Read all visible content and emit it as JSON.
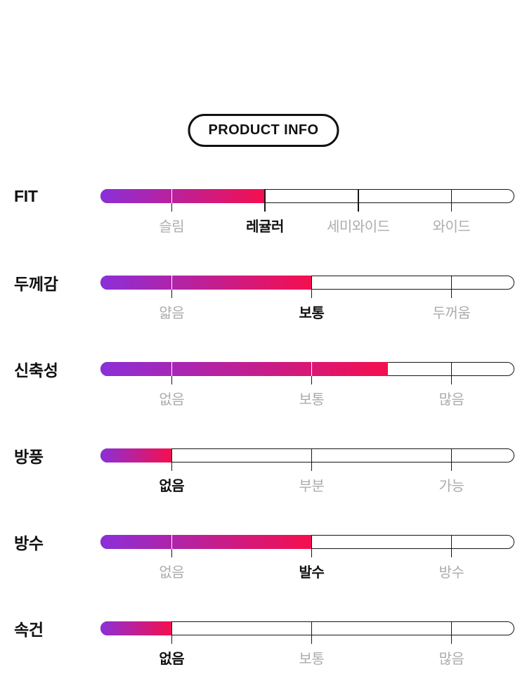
{
  "header": {
    "badge_label": "PRODUCT INFO"
  },
  "colors": {
    "gradient_start": "#8B2FD9",
    "gradient_end": "#F50F4E",
    "track_border": "#161616",
    "inactive_label": "#ACACAC",
    "active_label": "#111111"
  },
  "chart_data": {
    "type": "bar",
    "title": "PRODUCT INFO",
    "orientation": "horizontal",
    "rows": [
      {
        "name": "FIT",
        "labels": [
          "슬림",
          "레귤러",
          "세미와이드",
          "와이드"
        ],
        "active_index": 1,
        "active_label": "레귤러",
        "fill_percent": 39.7
      },
      {
        "name": "두께감",
        "labels": [
          "얇음",
          "보통",
          "두꺼움"
        ],
        "active_index": 1,
        "active_label": "보통",
        "fill_percent": 51.0
      },
      {
        "name": "신축성",
        "labels": [
          "없음",
          "보통",
          "많음"
        ],
        "active_index": null,
        "active_label": null,
        "fill_percent": 69.5
      },
      {
        "name": "방풍",
        "labels": [
          "없음",
          "부분",
          "가능"
        ],
        "active_index": 0,
        "active_label": "없음",
        "fill_percent": 17.2
      },
      {
        "name": "방수",
        "labels": [
          "없음",
          "발수",
          "방수"
        ],
        "active_index": 1,
        "active_label": "발수",
        "fill_percent": 51.0
      },
      {
        "name": "속건",
        "labels": [
          "없음",
          "보통",
          "많음"
        ],
        "active_index": 0,
        "active_label": "없음",
        "fill_percent": 17.2
      }
    ]
  }
}
